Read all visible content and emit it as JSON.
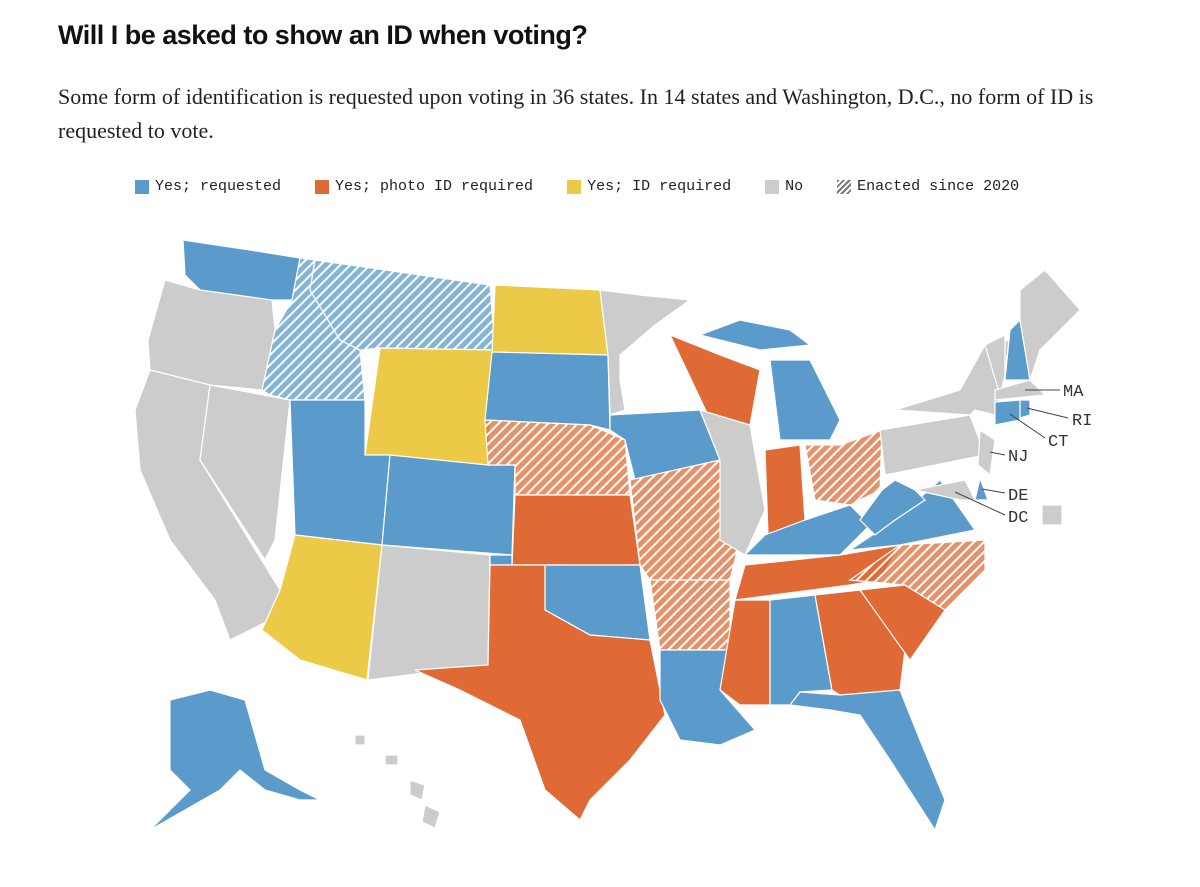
{
  "header": {
    "title": "Will I be asked to show an ID when voting?",
    "subtitle": "Some form of identification is requested upon voting in 36 states. In 14 states and Washington, D.C., no form of ID is requested to vote."
  },
  "legend": {
    "items": [
      {
        "label": "Yes; requested",
        "color": "#5b9bcb"
      },
      {
        "label": "Yes; photo ID required",
        "color": "#e06a35"
      },
      {
        "label": "Yes; ID required",
        "color": "#ecca47"
      },
      {
        "label": "No",
        "color": "#cccccc"
      }
    ],
    "hatch": {
      "label": "Enacted since 2020"
    }
  },
  "map": {
    "labels": [
      "MA",
      "RI",
      "CT",
      "NJ",
      "DE",
      "DC"
    ]
  }
}
